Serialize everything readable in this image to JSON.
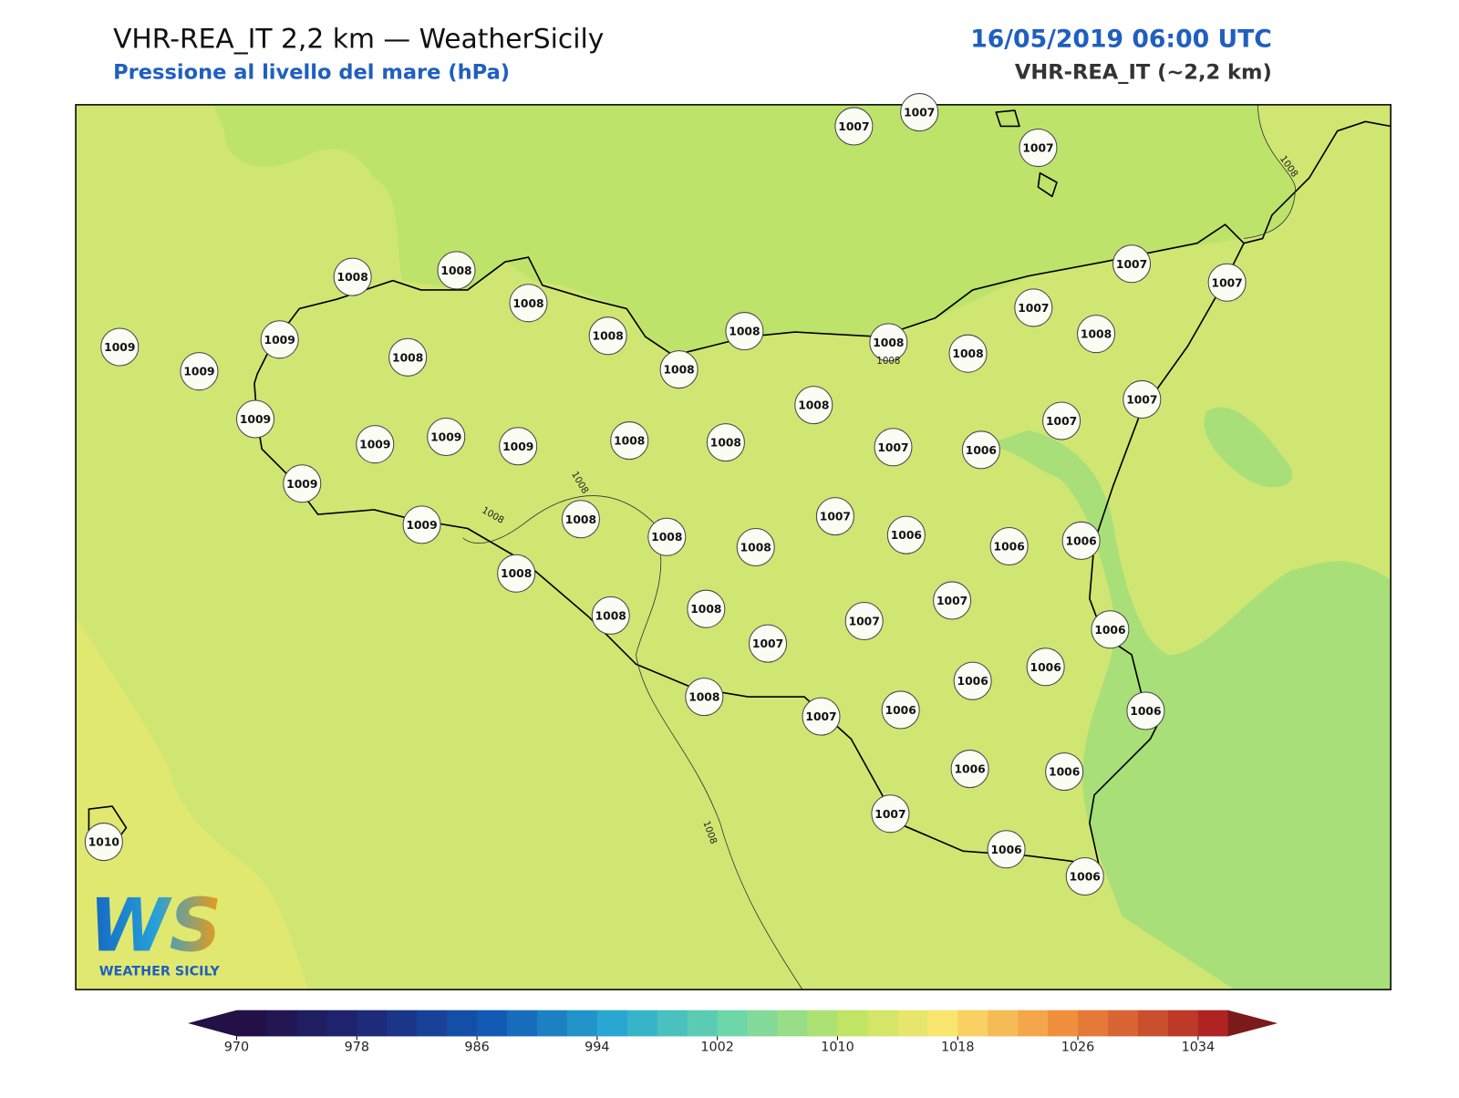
{
  "header": {
    "title": "VHR-REA_IT 2,2 km — WeatherSicily",
    "subtitle": "Pressione al livello del mare (hPa)",
    "datetime": "16/05/2019 06:00 UTC",
    "model": "VHR-REA_IT (~2,2 km)"
  },
  "map": {
    "stations": [
      1007,
      1007,
      1007,
      1008,
      1008,
      1008,
      1007,
      1007,
      1007,
      1008,
      1009,
      1009,
      1008,
      1008,
      1008,
      1008,
      1008,
      1009,
      1008,
      1008,
      1007,
      1009,
      1007,
      1009,
      1009,
      1009,
      1008,
      1008,
      1007,
      1006,
      1009,
      1009,
      1008,
      1008,
      1008,
      1007,
      1006,
      1006,
      1006,
      1008,
      1008,
      1008,
      1007,
      1007,
      1007,
      1006,
      1006,
      1006,
      1008,
      1007,
      1006,
      1006,
      1006,
      1006,
      1007,
      1010,
      1006,
      1006
    ],
    "contour_labels": [
      1008,
      1008,
      1008,
      1008,
      1008
    ]
  },
  "colorbar": {
    "ticks": [
      970,
      978,
      986,
      994,
      1002,
      1010,
      1018,
      1026,
      1034
    ]
  },
  "logo": {
    "mark": "WS",
    "text": "WEATHER SICILY"
  }
}
